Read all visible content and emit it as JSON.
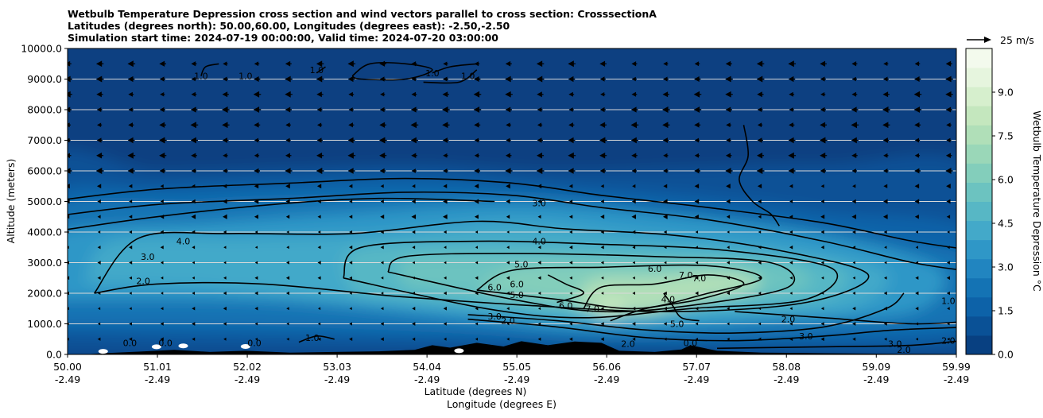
{
  "titles": [
    "Wetbulb Temperature Depression cross section and wind vectors parallel to cross section: CrosssectionA",
    "Latitudes (degrees north): 50.00,60.00, Longitudes (degrees east): -2.50,-2.50",
    "Simulation start time: 2024-07-19 00:00:00, Valid time: 2024-07-20 03:00:00"
  ],
  "chart_data": {
    "type": "heatmap",
    "ylabel": "Altitude (meters)",
    "xlabel_lat": "Latitude (degrees N)",
    "xlabel_lon": "Longitude (degrees E)",
    "ylim": [
      0,
      10000
    ],
    "xlim": [
      50.0,
      59.99
    ],
    "y_ticks": [
      "0.0",
      "1000.0",
      "2000.0",
      "3000.0",
      "4000.0",
      "5000.0",
      "6000.0",
      "7000.0",
      "8000.0",
      "9000.0",
      "10000.0"
    ],
    "x_ticks": [
      {
        "lat": "50.00",
        "lon": "-2.49"
      },
      {
        "lat": "51.01",
        "lon": "-2.49"
      },
      {
        "lat": "52.02",
        "lon": "-2.49"
      },
      {
        "lat": "53.03",
        "lon": "-2.49"
      },
      {
        "lat": "54.04",
        "lon": "-2.49"
      },
      {
        "lat": "55.05",
        "lon": "-2.49"
      },
      {
        "lat": "56.06",
        "lon": "-2.49"
      },
      {
        "lat": "57.07",
        "lon": "-2.49"
      },
      {
        "lat": "58.08",
        "lon": "-2.49"
      },
      {
        "lat": "59.09",
        "lon": "-2.49"
      },
      {
        "lat": "59.99",
        "lon": "-2.49"
      }
    ],
    "colorbar": {
      "label": "Wetbulb Temperature Depression °C",
      "range": [
        0.0,
        10.5
      ],
      "ticks": [
        "0.0",
        "1.5",
        "3.0",
        "4.5",
        "6.0",
        "7.5",
        "9.0"
      ],
      "colors": [
        "#084081",
        "#0a5196",
        "#0d62a8",
        "#1473b4",
        "#2185c0",
        "#2f97c7",
        "#43a9c9",
        "#57b7c5",
        "#6cc3c0",
        "#83cebb",
        "#9ad7b8",
        "#b0dfb8",
        "#c4e7be",
        "#d6efcd",
        "#e6f5de",
        "#f3faed"
      ]
    },
    "wind_key": {
      "label": "25 m/s"
    },
    "contour_labels": [
      {
        "text": "1.0",
        "x": 51.5,
        "y": 9100
      },
      {
        "text": "1.0",
        "x": 52.0,
        "y": 9100
      },
      {
        "text": "1.0",
        "x": 52.8,
        "y": 9300
      },
      {
        "text": "1.0",
        "x": 54.1,
        "y": 9200
      },
      {
        "text": "1.0",
        "x": 54.5,
        "y": 9100
      },
      {
        "text": "3.0",
        "x": 55.3,
        "y": 4950
      },
      {
        "text": "4.0",
        "x": 51.3,
        "y": 3700
      },
      {
        "text": "4.0",
        "x": 55.3,
        "y": 3700
      },
      {
        "text": "3.0",
        "x": 50.9,
        "y": 3200
      },
      {
        "text": "5.0",
        "x": 55.1,
        "y": 2950
      },
      {
        "text": "2.0",
        "x": 50.85,
        "y": 2400
      },
      {
        "text": "6.0",
        "x": 54.8,
        "y": 2200
      },
      {
        "text": "6.0",
        "x": 55.05,
        "y": 2300
      },
      {
        "text": "5.0",
        "x": 55.05,
        "y": 1950
      },
      {
        "text": "6.0",
        "x": 55.6,
        "y": 1600
      },
      {
        "text": "7.0",
        "x": 55.9,
        "y": 1500
      },
      {
        "text": "6.0",
        "x": 56.6,
        "y": 2800
      },
      {
        "text": "7.0",
        "x": 56.95,
        "y": 2600
      },
      {
        "text": "7.0",
        "x": 57.1,
        "y": 2500
      },
      {
        "text": "4.0",
        "x": 56.75,
        "y": 1800
      },
      {
        "text": "3.0",
        "x": 54.8,
        "y": 1250
      },
      {
        "text": "2.0",
        "x": 54.95,
        "y": 1100
      },
      {
        "text": "5.0",
        "x": 56.85,
        "y": 1000
      },
      {
        "text": "1.0",
        "x": 52.75,
        "y": 550
      },
      {
        "text": "0.0",
        "x": 50.7,
        "y": 380
      },
      {
        "text": "0.0",
        "x": 51.1,
        "y": 380
      },
      {
        "text": "0.0",
        "x": 52.1,
        "y": 380
      },
      {
        "text": "0.0",
        "x": 57.0,
        "y": 380
      },
      {
        "text": "2.0",
        "x": 58.1,
        "y": 1150
      },
      {
        "text": "3.0",
        "x": 58.3,
        "y": 600
      },
      {
        "text": "2.0",
        "x": 56.3,
        "y": 350
      },
      {
        "text": "3.0",
        "x": 59.3,
        "y": 350
      },
      {
        "text": "2.0",
        "x": 59.4,
        "y": 150
      },
      {
        "text": "2.0",
        "x": 59.9,
        "y": 450
      },
      {
        "text": "1.0",
        "x": 59.9,
        "y": 1750
      }
    ]
  }
}
